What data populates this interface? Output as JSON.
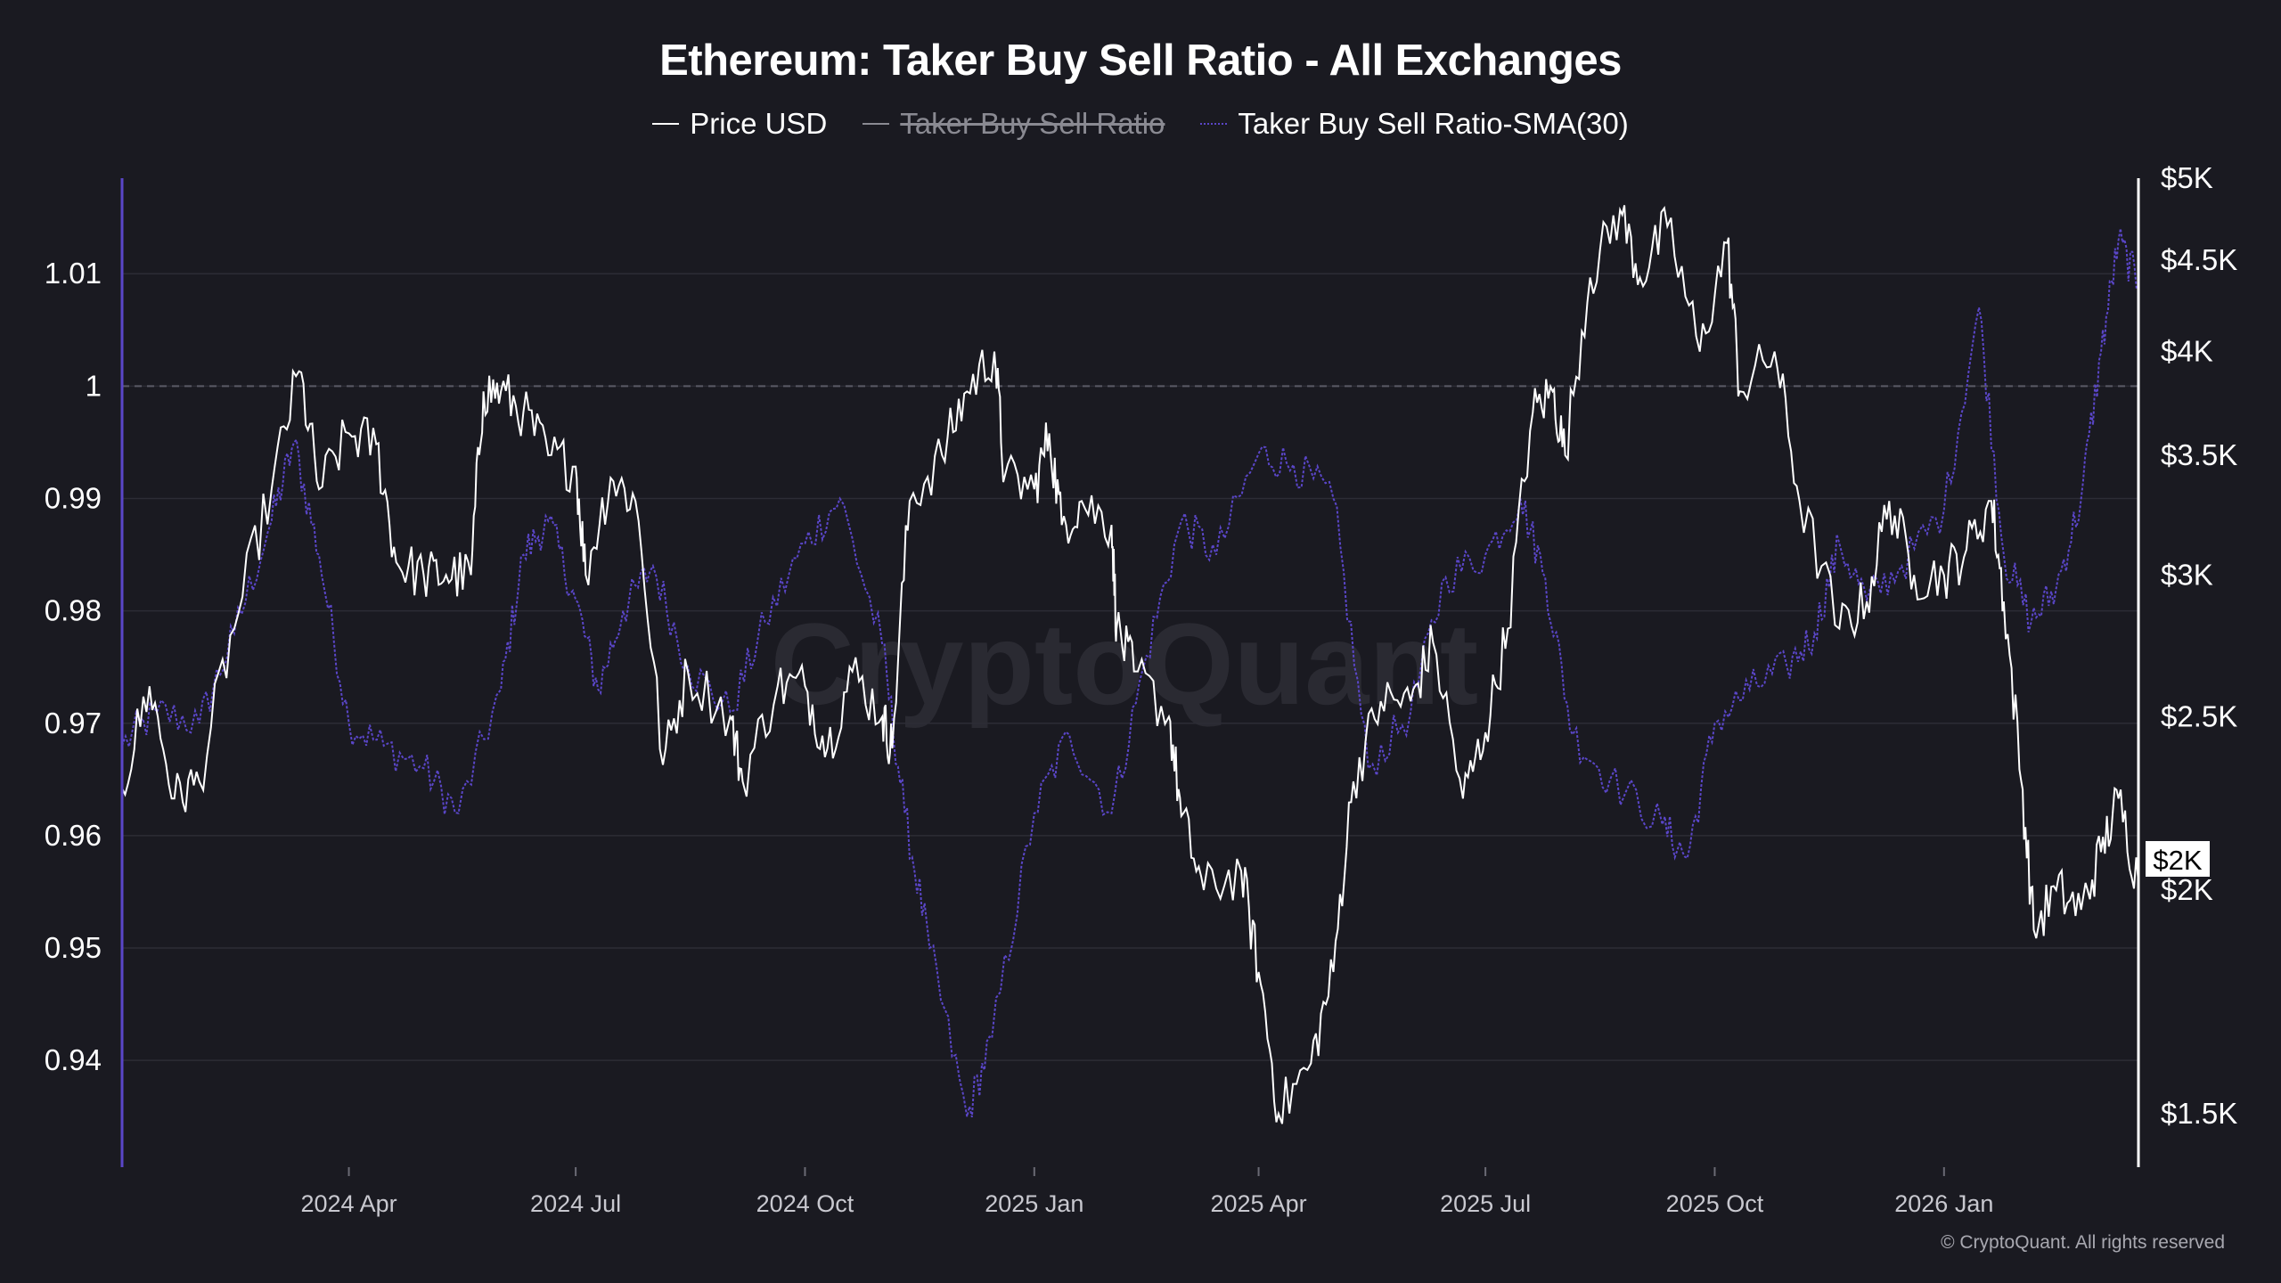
{
  "title": "Ethereum: Taker Buy Sell Ratio - All Exchanges",
  "legend": [
    {
      "label": "Price USD",
      "color": "#ffffff",
      "style": "solid",
      "hidden": false
    },
    {
      "label": "Taker Buy Sell Ratio",
      "color": "#8a8a92",
      "style": "solid",
      "hidden": true
    },
    {
      "label": "Taker Buy Sell Ratio-SMA(30)",
      "color": "#5a46c8",
      "style": "dotted",
      "hidden": false
    }
  ],
  "watermark": "CryptoQuant",
  "copyright": "© CryptoQuant. All rights reserved",
  "price_badge": "$2K",
  "colors": {
    "background": "#1a1a21",
    "price": "#ffffff",
    "sma": "#5a46c8",
    "grid": "#2c2c35",
    "left_axis": "#5a46c8",
    "right_axis": "#ffffff"
  },
  "chart_data": {
    "type": "line",
    "title": "Ethereum: Taker Buy Sell Ratio - All Exchanges",
    "x_start": "2024-01-01",
    "x_end": "2026-03-20",
    "x_ticks": [
      {
        "label": "2024 Apr",
        "date": "2024-04-01"
      },
      {
        "label": "2024 Jul",
        "date": "2024-07-01"
      },
      {
        "label": "2024 Oct",
        "date": "2024-10-01"
      },
      {
        "label": "2025 Jan",
        "date": "2025-01-01"
      },
      {
        "label": "2025 Apr",
        "date": "2025-04-01"
      },
      {
        "label": "2025 Jul",
        "date": "2025-07-01"
      },
      {
        "label": "2025 Oct",
        "date": "2025-10-01"
      },
      {
        "label": "2026 Jan",
        "date": "2026-01-01"
      }
    ],
    "y_left": {
      "label": "Taker Buy Sell Ratio",
      "range": [
        0.9305,
        1.0185
      ],
      "ticks": [
        {
          "v": 0.94,
          "label": "0.94"
        },
        {
          "v": 0.95,
          "label": "0.95"
        },
        {
          "v": 0.96,
          "label": "0.96"
        },
        {
          "v": 0.97,
          "label": "0.97"
        },
        {
          "v": 0.98,
          "label": "0.98"
        },
        {
          "v": 0.99,
          "label": "0.99"
        },
        {
          "v": 1.0,
          "label": "1"
        },
        {
          "v": 1.01,
          "label": "1.01"
        }
      ],
      "reference_line": 1.0
    },
    "y_right": {
      "label": "Price USD",
      "scale": "log",
      "range": [
        1400,
        5000
      ],
      "ticks": [
        {
          "v": 1500,
          "label": "$1.5K"
        },
        {
          "v": 2000,
          "label": "$2K"
        },
        {
          "v": 2500,
          "label": "$2.5K"
        },
        {
          "v": 3000,
          "label": "$3K"
        },
        {
          "v": 3500,
          "label": "$3.5K"
        },
        {
          "v": 4000,
          "label": "$4K"
        },
        {
          "v": 4500,
          "label": "$4.5K"
        },
        {
          "v": 5000,
          "label": "$5K"
        }
      ]
    },
    "series": [
      {
        "name": "Price USD",
        "axis": "right",
        "points": [
          [
            "2024-01-01",
            2280
          ],
          [
            "2024-01-12",
            2600
          ],
          [
            "2024-01-22",
            2250
          ],
          [
            "2024-02-01",
            2300
          ],
          [
            "2024-02-15",
            2800
          ],
          [
            "2024-03-01",
            3350
          ],
          [
            "2024-03-12",
            3900
          ],
          [
            "2024-03-20",
            3350
          ],
          [
            "2024-04-01",
            3600
          ],
          [
            "2024-04-12",
            3550
          ],
          [
            "2024-04-20",
            3050
          ],
          [
            "2024-05-01",
            3000
          ],
          [
            "2024-05-10",
            3000
          ],
          [
            "2024-05-20",
            3000
          ],
          [
            "2024-05-25",
            3800
          ],
          [
            "2024-06-01",
            3800
          ],
          [
            "2024-06-10",
            3700
          ],
          [
            "2024-06-20",
            3500
          ],
          [
            "2024-07-01",
            3450
          ],
          [
            "2024-07-05",
            3000
          ],
          [
            "2024-07-15",
            3400
          ],
          [
            "2024-07-25",
            3300
          ],
          [
            "2024-08-05",
            2350
          ],
          [
            "2024-08-15",
            2650
          ],
          [
            "2024-09-01",
            2500
          ],
          [
            "2024-09-06",
            2300
          ],
          [
            "2024-09-20",
            2600
          ],
          [
            "2024-10-01",
            2600
          ],
          [
            "2024-10-10",
            2400
          ],
          [
            "2024-10-20",
            2650
          ],
          [
            "2024-11-01",
            2500
          ],
          [
            "2024-11-05",
            2400
          ],
          [
            "2024-11-12",
            3300
          ],
          [
            "2024-11-25",
            3500
          ],
          [
            "2024-12-05",
            3800
          ],
          [
            "2024-12-16",
            4000
          ],
          [
            "2024-12-20",
            3400
          ],
          [
            "2025-01-01",
            3350
          ],
          [
            "2025-01-07",
            3600
          ],
          [
            "2025-01-12",
            3200
          ],
          [
            "2025-01-20",
            3300
          ],
          [
            "2025-02-01",
            3200
          ],
          [
            "2025-02-03",
            2800
          ],
          [
            "2025-02-10",
            2650
          ],
          [
            "2025-02-24",
            2500
          ],
          [
            "2025-03-01",
            2200
          ],
          [
            "2025-03-10",
            2000
          ],
          [
            "2025-03-25",
            2050
          ],
          [
            "2025-04-01",
            1800
          ],
          [
            "2025-04-09",
            1500
          ],
          [
            "2025-04-22",
            1600
          ],
          [
            "2025-05-01",
            1800
          ],
          [
            "2025-05-09",
            2300
          ],
          [
            "2025-05-20",
            2550
          ],
          [
            "2025-06-01",
            2550
          ],
          [
            "2025-06-10",
            2750
          ],
          [
            "2025-06-22",
            2250
          ],
          [
            "2025-07-01",
            2450
          ],
          [
            "2025-07-10",
            2800
          ],
          [
            "2025-07-20",
            3700
          ],
          [
            "2025-07-28",
            3800
          ],
          [
            "2025-08-02",
            3500
          ],
          [
            "2025-08-12",
            4400
          ],
          [
            "2025-08-24",
            4800
          ],
          [
            "2025-09-01",
            4400
          ],
          [
            "2025-09-12",
            4700
          ],
          [
            "2025-09-25",
            4000
          ],
          [
            "2025-10-06",
            4600
          ],
          [
            "2025-10-11",
            3800
          ],
          [
            "2025-10-25",
            4000
          ],
          [
            "2025-11-04",
            3300
          ],
          [
            "2025-11-20",
            2800
          ],
          [
            "2025-12-01",
            2900
          ],
          [
            "2025-12-10",
            3300
          ],
          [
            "2025-12-20",
            3000
          ],
          [
            "2026-01-01",
            3000
          ],
          [
            "2026-01-10",
            3100
          ],
          [
            "2026-01-20",
            3300
          ],
          [
            "2026-01-25",
            2900
          ],
          [
            "2026-02-01",
            2300
          ],
          [
            "2026-02-06",
            1900
          ],
          [
            "2026-02-15",
            2000
          ],
          [
            "2026-02-25",
            1950
          ],
          [
            "2026-03-05",
            2100
          ],
          [
            "2026-03-12",
            2250
          ],
          [
            "2026-03-20",
            2020
          ]
        ]
      },
      {
        "name": "Taker Buy Sell Ratio-SMA(30)",
        "axis": "left",
        "points": [
          [
            "2024-01-01",
            0.968
          ],
          [
            "2024-01-15",
            0.971
          ],
          [
            "2024-02-01",
            0.97
          ],
          [
            "2024-02-15",
            0.978
          ],
          [
            "2024-03-01",
            0.988
          ],
          [
            "2024-03-10",
            0.995
          ],
          [
            "2024-03-20",
            0.985
          ],
          [
            "2024-04-01",
            0.97
          ],
          [
            "2024-04-15",
            0.968
          ],
          [
            "2024-05-01",
            0.966
          ],
          [
            "2024-05-15",
            0.962
          ],
          [
            "2024-06-01",
            0.973
          ],
          [
            "2024-06-10",
            0.985
          ],
          [
            "2024-06-20",
            0.988
          ],
          [
            "2024-07-01",
            0.981
          ],
          [
            "2024-07-10",
            0.973
          ],
          [
            "2024-07-20",
            0.98
          ],
          [
            "2024-08-01",
            0.984
          ],
          [
            "2024-08-15",
            0.975
          ],
          [
            "2024-09-01",
            0.971
          ],
          [
            "2024-09-15",
            0.979
          ],
          [
            "2024-10-01",
            0.986
          ],
          [
            "2024-10-15",
            0.99
          ],
          [
            "2024-11-01",
            0.977
          ],
          [
            "2024-11-10",
            0.962
          ],
          [
            "2024-11-20",
            0.95
          ],
          [
            "2024-12-05",
            0.935
          ],
          [
            "2024-12-15",
            0.942
          ],
          [
            "2025-01-01",
            0.962
          ],
          [
            "2025-01-15",
            0.969
          ],
          [
            "2025-02-01",
            0.962
          ],
          [
            "2025-02-15",
            0.976
          ],
          [
            "2025-03-01",
            0.988
          ],
          [
            "2025-03-15",
            0.985
          ],
          [
            "2025-04-01",
            0.994
          ],
          [
            "2025-04-15",
            0.993
          ],
          [
            "2025-05-01",
            0.99
          ],
          [
            "2025-05-15",
            0.966
          ],
          [
            "2025-06-01",
            0.971
          ],
          [
            "2025-06-15",
            0.983
          ],
          [
            "2025-07-01",
            0.985
          ],
          [
            "2025-07-15",
            0.99
          ],
          [
            "2025-07-25",
            0.983
          ],
          [
            "2025-08-05",
            0.969
          ],
          [
            "2025-08-20",
            0.965
          ],
          [
            "2025-09-10",
            0.961
          ],
          [
            "2025-09-20",
            0.958
          ],
          [
            "2025-10-01",
            0.97
          ],
          [
            "2025-10-15",
            0.973
          ],
          [
            "2025-10-30",
            0.975
          ],
          [
            "2025-11-10",
            0.978
          ],
          [
            "2025-11-20",
            0.986
          ],
          [
            "2025-12-01",
            0.981
          ],
          [
            "2025-12-15",
            0.984
          ],
          [
            "2026-01-01",
            0.989
          ],
          [
            "2026-01-15",
            1.007
          ],
          [
            "2026-01-25",
            0.985
          ],
          [
            "2026-02-05",
            0.979
          ],
          [
            "2026-02-15",
            0.982
          ],
          [
            "2026-02-25",
            0.99
          ],
          [
            "2026-03-05",
            1.003
          ],
          [
            "2026-03-12",
            1.013
          ],
          [
            "2026-03-20",
            1.009
          ]
        ]
      }
    ]
  }
}
